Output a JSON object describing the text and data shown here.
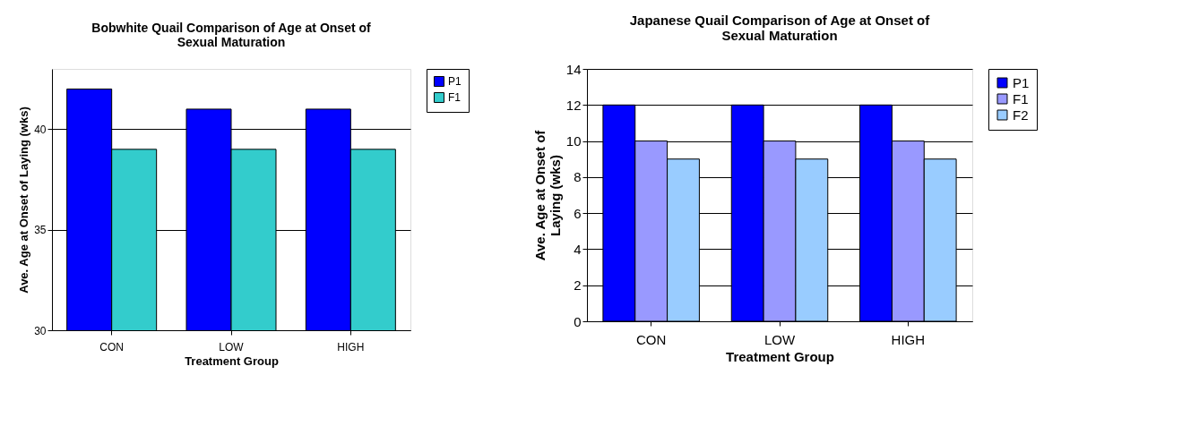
{
  "chart_data": [
    {
      "type": "bar",
      "title": "Bobwhite Quail Comparison of Age at Onset of Sexual Maturation",
      "xlabel": "Treatment Group",
      "ylabel": "Ave. Age at Onset of Laying (wks)",
      "categories": [
        "CON",
        "LOW",
        "HIGH"
      ],
      "series": [
        {
          "name": "P1",
          "color": "#0000ff",
          "values": [
            42,
            41,
            41
          ]
        },
        {
          "name": "F1",
          "color": "#33cccc",
          "values": [
            39,
            39,
            39
          ]
        }
      ],
      "ylim": [
        30,
        43
      ],
      "yticks": [
        30,
        35,
        40
      ],
      "grid": "y",
      "legend": "right"
    },
    {
      "type": "bar",
      "title": "Japanese Quail Comparison of Age at Onset of Sexual Maturation",
      "xlabel": "Treatment Group",
      "ylabel": "Ave. Age at Onset of Laying (wks)",
      "categories": [
        "CON",
        "LOW",
        "HIGH"
      ],
      "series": [
        {
          "name": "P1",
          "color": "#0000ff",
          "values": [
            12,
            12,
            12
          ]
        },
        {
          "name": "F1",
          "color": "#9999ff",
          "values": [
            10,
            10,
            10
          ]
        },
        {
          "name": "F2",
          "color": "#99ccff",
          "values": [
            9,
            9,
            9
          ]
        }
      ],
      "ylim": [
        0,
        14
      ],
      "yticks": [
        0,
        2,
        4,
        6,
        8,
        10,
        12,
        14
      ],
      "grid": "y",
      "legend": "right"
    }
  ]
}
